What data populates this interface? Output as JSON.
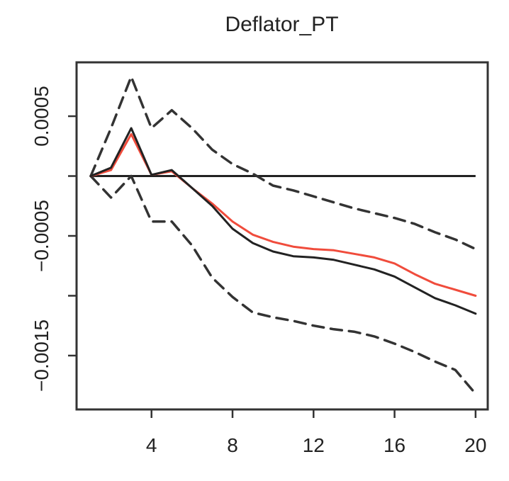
{
  "chart_data": {
    "type": "line",
    "title": "Deflator_PT",
    "xlabel": "",
    "ylabel": "",
    "xlim": [
      0.3,
      20.6
    ],
    "ylim": [
      -0.00195,
      0.00095
    ],
    "xticks": [
      4,
      8,
      12,
      16,
      20
    ],
    "yticks": [
      0.0005,
      0,
      -0.0005,
      -0.001,
      -0.0015
    ],
    "ytick_labels": [
      "0.0005",
      "",
      "-0.0005",
      "",
      "-0.0015"
    ],
    "grid": false,
    "legend": "none",
    "x": [
      1,
      2,
      3,
      4,
      5,
      6,
      7,
      8,
      9,
      10,
      11,
      12,
      13,
      14,
      15,
      16,
      17,
      18,
      19,
      20
    ],
    "series": [
      {
        "style": "solid",
        "color": "#222222",
        "values": [
          0.0,
          7e-05,
          0.0004,
          1e-05,
          5e-05,
          -0.0001,
          -0.00025,
          -0.00044,
          -0.00056,
          -0.00063,
          -0.00067,
          -0.00068,
          -0.0007,
          -0.00074,
          -0.00078,
          -0.00084,
          -0.00093,
          -0.00102,
          -0.00108,
          -0.00115
        ]
      },
      {
        "style": "solid",
        "color": "#f04c3c",
        "values": [
          0.0,
          5e-05,
          0.00035,
          1e-05,
          4e-05,
          -0.0001,
          -0.00023,
          -0.00038,
          -0.00049,
          -0.00055,
          -0.00059,
          -0.00061,
          -0.00062,
          -0.00065,
          -0.00068,
          -0.00073,
          -0.00082,
          -0.0009,
          -0.00095,
          -0.001
        ]
      },
      {
        "style": "dashed",
        "color": "#333333",
        "values": [
          0.0,
          0.0004,
          0.00083,
          0.0004,
          0.00055,
          0.0004,
          0.00022,
          0.0001,
          2e-05,
          -8e-05,
          -0.00012,
          -0.00017,
          -0.00022,
          -0.00027,
          -0.00031,
          -0.00035,
          -0.0004,
          -0.00047,
          -0.00053,
          -0.00061
        ]
      },
      {
        "style": "dashed",
        "color": "#333333",
        "values": [
          0.0,
          -0.00018,
          0.0,
          -0.00038,
          -0.00038,
          -0.00058,
          -0.00085,
          -0.00101,
          -0.00114,
          -0.00118,
          -0.00121,
          -0.00125,
          -0.00128,
          -0.0013,
          -0.00134,
          -0.0014,
          -0.00147,
          -0.00155,
          -0.00162,
          -0.00182
        ]
      }
    ],
    "reference_line": {
      "y": 0,
      "style": "solid",
      "color": "#222222"
    }
  }
}
